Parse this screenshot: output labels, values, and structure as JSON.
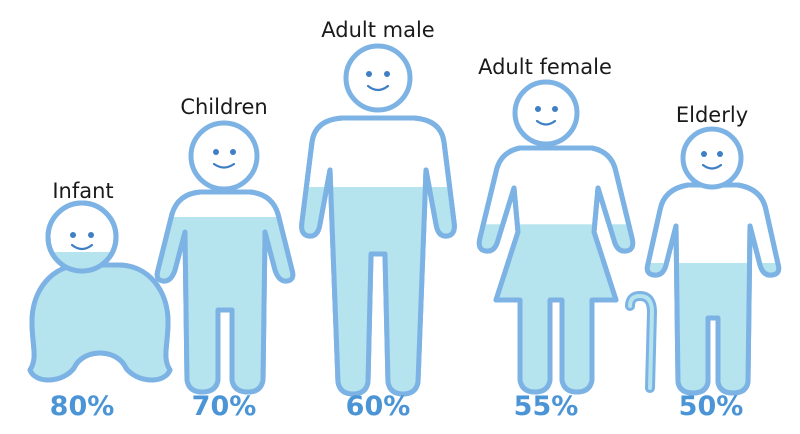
{
  "colors": {
    "outline": "#7db3e4",
    "water": "#b5e3ee",
    "percent_text": "#4b95d6",
    "label_text": "#1a1a1a",
    "face": "#3f7fc4"
  },
  "figures": [
    {
      "label": "Infant",
      "percent": "80%",
      "water_fraction": 0.8,
      "shape": "infant-icon"
    },
    {
      "label": "Children",
      "percent": "70%",
      "water_fraction": 0.7,
      "shape": "child-icon"
    },
    {
      "label": "Adult male",
      "percent": "60%",
      "water_fraction": 0.6,
      "shape": "adult-male-icon"
    },
    {
      "label": "Adult female",
      "percent": "55%",
      "water_fraction": 0.55,
      "shape": "adult-female-icon"
    },
    {
      "label": "Elderly",
      "percent": "50%",
      "water_fraction": 0.5,
      "shape": "elderly-icon"
    }
  ]
}
